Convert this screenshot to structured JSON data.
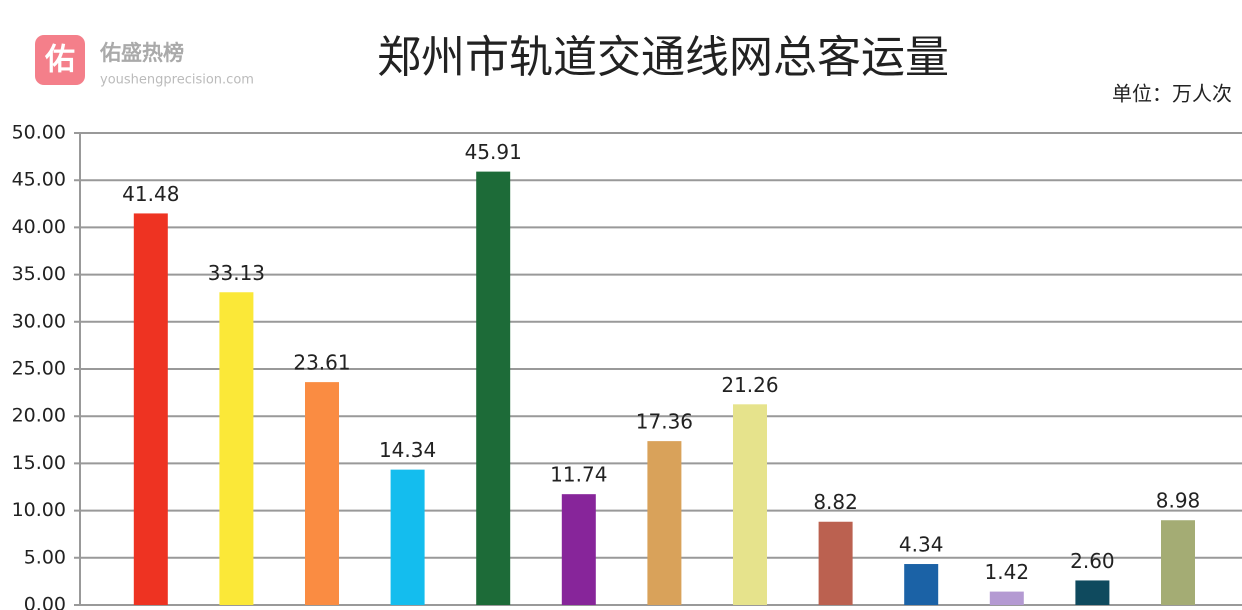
{
  "watermark": {
    "logo": "佑",
    "name": "佑盛热榜",
    "url": "youshengprecision.com"
  },
  "chart_data": {
    "type": "bar",
    "title": "郑州市轨道交通线网总客运量",
    "unit_label": "单位：万人次",
    "categories": [
      null,
      null,
      null,
      null,
      null,
      null,
      null,
      null,
      null,
      null,
      null,
      null,
      null
    ],
    "values": [
      41.48,
      33.13,
      23.61,
      14.34,
      45.91,
      11.74,
      17.36,
      21.26,
      8.82,
      4.34,
      1.42,
      2.6,
      8.98
    ],
    "value_labels": [
      "41.48",
      "33.13",
      "23.61",
      "14.34",
      "45.91",
      "11.74",
      "17.36",
      "21.26",
      "8.82",
      "4.34",
      "1.42",
      "2.60",
      "8.98"
    ],
    "colors": [
      "#ee3322",
      "#fbe838",
      "#fa8c42",
      "#14bdee",
      "#1d6b38",
      "#87259a",
      "#d9a25a",
      "#e6e38c",
      "#bb6150",
      "#1b62a6",
      "#b49ad2",
      "#0f4a5e",
      "#a4ac74"
    ],
    "ylim": [
      0,
      50
    ],
    "yticks": [
      {
        "value": 0,
        "label": "0.00"
      },
      {
        "value": 5,
        "label": "5.00"
      },
      {
        "value": 10,
        "label": "10.00"
      },
      {
        "value": 15,
        "label": "15.00"
      },
      {
        "value": 20,
        "label": "20.00"
      },
      {
        "value": 25,
        "label": "25.00"
      },
      {
        "value": 30,
        "label": "30.00"
      },
      {
        "value": 35,
        "label": "35.00"
      },
      {
        "value": 40,
        "label": "40.00"
      },
      {
        "value": 45,
        "label": "45.00"
      },
      {
        "value": 50,
        "label": "50.00"
      }
    ],
    "grid": true
  }
}
